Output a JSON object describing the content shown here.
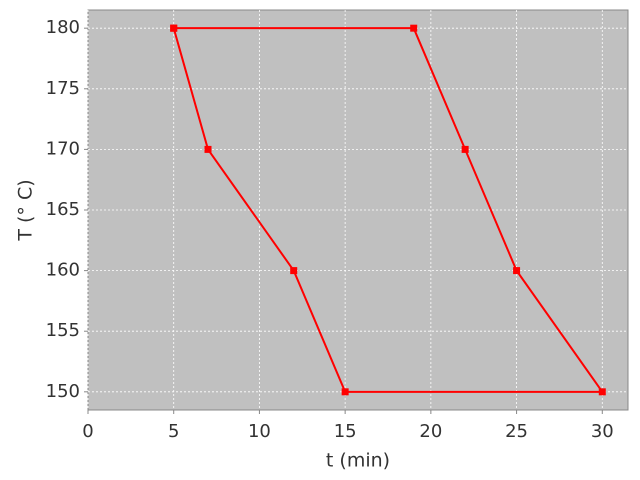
{
  "chart_data": {
    "type": "line",
    "x_label": "t (min)",
    "y_label": "T (° C)",
    "series": [
      {
        "color": "#ff0000",
        "x": [
          5,
          7,
          12,
          15,
          30,
          25,
          22,
          19,
          5
        ],
        "values": [
          180,
          170,
          160,
          150,
          150,
          160,
          170,
          180,
          180
        ]
      }
    ],
    "xlim": [
      0,
      31.5
    ],
    "ylim": [
      148.5,
      181.5
    ],
    "xticks": [
      0,
      5,
      10,
      15,
      20,
      25,
      30
    ],
    "yticks": [
      150,
      155,
      160,
      165,
      170,
      175,
      180
    ],
    "grid": true,
    "markers": true
  }
}
